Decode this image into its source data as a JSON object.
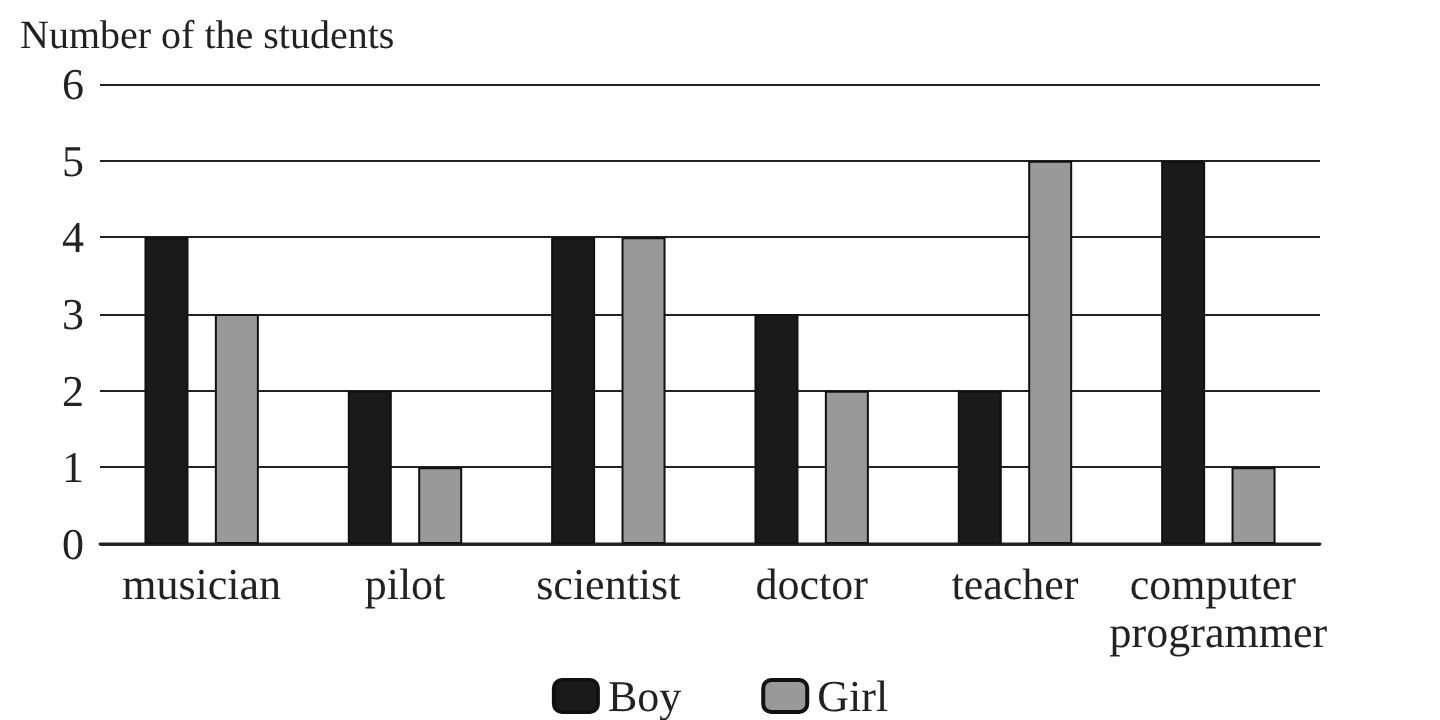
{
  "chart_data": {
    "type": "bar",
    "ylabel": "Number of the students",
    "categories": [
      "musician",
      "pilot",
      "scientist",
      "doctor",
      "teacher",
      "computer programmer"
    ],
    "series": [
      {
        "name": "Boy",
        "color": "#1a1a1a",
        "values": [
          4,
          2,
          4,
          3,
          2,
          5
        ]
      },
      {
        "name": "Girl",
        "color": "#999999",
        "values": [
          3,
          1,
          4,
          2,
          5,
          1
        ]
      }
    ],
    "ylim": [
      0,
      6
    ],
    "yticks": [
      0,
      1,
      2,
      3,
      4,
      5,
      6
    ],
    "grid": "y",
    "legend": "bottom"
  }
}
